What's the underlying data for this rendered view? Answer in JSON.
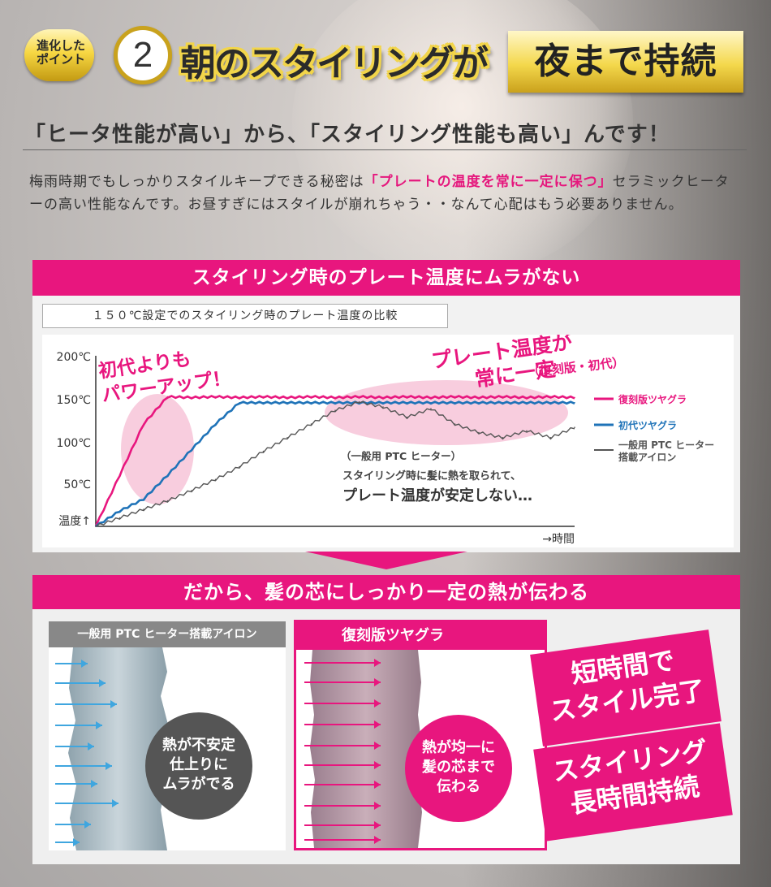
{
  "header": {
    "badge_text": "進化した\nポイント",
    "badge_number": "2",
    "headline": "朝のスタイリングが",
    "headline_box": "夜まで持続"
  },
  "subhead": "「ヒータ性能が高い」から、「スタイリング性能も高い」んです！",
  "lead": {
    "part1": "梅雨時期でもしっかりスタイルキープできる秘密は",
    "highlight": "「プレートの温度を常に一定に保つ」",
    "part2": "セラミックヒーターの高い性能なんです。お昼すぎにはスタイルが崩れちゃう・・なんて心配はもう必要ありません。"
  },
  "section1": {
    "title": "スタイリング時のプレート温度にムラがない",
    "caption": "１５０℃設定でのスタイリング時のプレート温度の比較"
  },
  "chart_data": {
    "type": "line",
    "title": "",
    "ylabel": "温度↑",
    "xlabel": "→時間",
    "y_ticks": [
      "200℃",
      "150℃",
      "100℃",
      "50℃"
    ],
    "ylim": [
      0,
      200
    ],
    "x": [
      0,
      1,
      2,
      3,
      4,
      5,
      6,
      7,
      8,
      9,
      10,
      11,
      12,
      13,
      14,
      15,
      16,
      17,
      18,
      19,
      20
    ],
    "series": [
      {
        "name": "復刻版ツヤグラ",
        "color": "#e8167e",
        "values": [
          0,
          60,
          120,
          152,
          151,
          152,
          151,
          152,
          151,
          152,
          151,
          152,
          151,
          152,
          151,
          152,
          151,
          152,
          151,
          152,
          151
        ]
      },
      {
        "name": "初代ツヤグラ",
        "color": "#1f73b8",
        "values": [
          0,
          18,
          32,
          60,
          90,
          120,
          145,
          145,
          145,
          145,
          145,
          145,
          145,
          145,
          145,
          145,
          145,
          145,
          145,
          145,
          145
        ]
      },
      {
        "name": "一般用 PTC ヒーター搭載アイロン",
        "color": "#555555",
        "values": [
          0,
          10,
          20,
          30,
          42,
          55,
          70,
          88,
          104,
          120,
          136,
          146,
          140,
          128,
          138,
          120,
          110,
          104,
          112,
          104,
          116
        ]
      }
    ],
    "annotations": {
      "left_callout": "初代よりも\nパワーアップ！",
      "right_callout": "プレート温度が\n常に一定",
      "right_callout_sub": "（復刻版・初代）",
      "ptc_note_1": "（一般用 PTC ヒーター）",
      "ptc_note_2": "スタイリング時に髪に熱を取られて、",
      "ptc_note_3": "プレート温度が安定しない…"
    },
    "grid": false
  },
  "section2": {
    "title": "だから、髪の芯にしっかり一定の熱が伝わる",
    "left_card_title": "一般用 PTC ヒーター搭載アイロン",
    "left_bubble": "熱が不安定\n仕上りに\nムラがでる",
    "right_card_title": "復刻版ツヤグラ",
    "right_bubble": "熱が均一に\n髪の芯まで\n伝わる",
    "tag1": "短時間で\nスタイル完了",
    "tag2": "スタイリング\n長時間持続"
  },
  "colors": {
    "accent": "#e8167e",
    "gold": "#f2d54a",
    "blue": "#1f73b8",
    "arrow_blue": "#3fa6df"
  }
}
